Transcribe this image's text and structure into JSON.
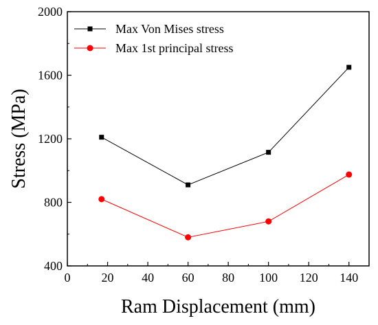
{
  "chart_data": {
    "type": "line",
    "title": "",
    "xlabel": "Ram Displacement (mm)",
    "ylabel": "Stress (MPa)",
    "xlim": [
      0,
      150
    ],
    "ylim": [
      400,
      2000
    ],
    "xticks": [
      0,
      20,
      40,
      60,
      80,
      100,
      120,
      140
    ],
    "yticks": [
      400,
      800,
      1200,
      1600,
      2000
    ],
    "grid": false,
    "legend_position": "top-left",
    "series": [
      {
        "name": "Max Von Mises stress",
        "color": "#000000",
        "marker": "square",
        "x": [
          17,
          60,
          100,
          140
        ],
        "y": [
          1210,
          910,
          1115,
          1650
        ]
      },
      {
        "name": "Max 1st principal stress",
        "color": "#ff0000",
        "marker": "circle",
        "x": [
          17,
          60,
          100,
          140
        ],
        "y": [
          820,
          580,
          680,
          975
        ]
      }
    ]
  }
}
